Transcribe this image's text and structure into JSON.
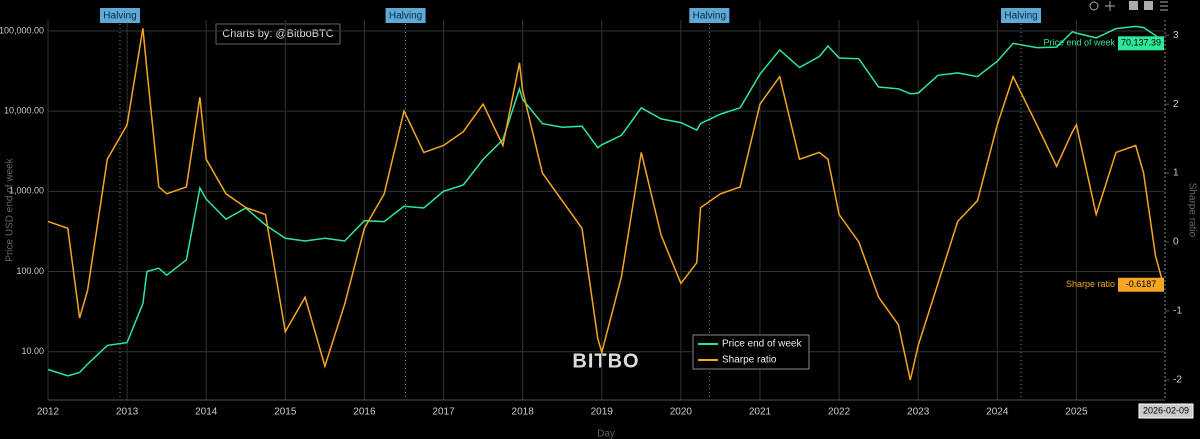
{
  "chart_data": {
    "type": "line",
    "credit": "Charts by: @BitboBTC",
    "watermark": "BITBO",
    "x_label": "Day",
    "y_label": "Price USD end of week",
    "y2_label": "Sharpe ratio",
    "hover_date": "2026-02-09",
    "y_log": true,
    "grid": true,
    "legend": "bottom",
    "halvings": {
      "label": "Halving",
      "x": [
        2012.91,
        2016.52,
        2020.36,
        2024.3
      ]
    },
    "xlim": [
      2012,
      2026.12
    ],
    "xticks": [
      2012,
      2013,
      2014,
      2015,
      2016,
      2017,
      2018,
      2019,
      2020,
      2021,
      2022,
      2023,
      2024,
      2025
    ],
    "ylim": [
      2.5,
      137000
    ],
    "yticks": [
      {
        "value": 10,
        "label": "10.00"
      },
      {
        "value": 100,
        "label": "100.00"
      },
      {
        "value": 1000,
        "label": "1,000.00"
      },
      {
        "value": 10000,
        "label": "10,000.00"
      },
      {
        "value": 100000,
        "label": "100,000.00"
      }
    ],
    "y2lim": [
      -2.29,
      3.22
    ],
    "y2ticks": [
      -2,
      -1,
      0,
      1,
      2,
      3
    ],
    "x": [
      2012.0,
      2012.25,
      2012.4,
      2012.5,
      2012.75,
      2013.0,
      2013.2,
      2013.25,
      2013.4,
      2013.5,
      2013.75,
      2013.92,
      2014.0,
      2014.25,
      2014.5,
      2014.75,
      2015.0,
      2015.25,
      2015.5,
      2015.75,
      2016.0,
      2016.25,
      2016.5,
      2016.75,
      2017.0,
      2017.25,
      2017.5,
      2017.75,
      2017.96,
      2018.0,
      2018.25,
      2018.5,
      2018.75,
      2018.95,
      2019.0,
      2019.25,
      2019.5,
      2019.75,
      2020.0,
      2020.2,
      2020.25,
      2020.5,
      2020.75,
      2021.0,
      2021.25,
      2021.5,
      2021.75,
      2021.86,
      2022.0,
      2022.25,
      2022.5,
      2022.75,
      2022.9,
      2023.0,
      2023.25,
      2023.5,
      2023.75,
      2024.0,
      2024.2,
      2024.5,
      2024.75,
      2024.95,
      2025.0,
      2025.25,
      2025.5,
      2025.75,
      2025.85,
      2026.0,
      2026.1
    ],
    "series": [
      {
        "name": "Price end of week",
        "color": "#2ee89a",
        "axis": "y",
        "values": [
          6,
          5,
          5.5,
          7,
          12,
          13,
          40,
          100,
          110,
          90,
          140,
          1100,
          800,
          450,
          620,
          380,
          260,
          240,
          260,
          240,
          430,
          420,
          650,
          620,
          1000,
          1200,
          2500,
          4400,
          19000,
          14000,
          7000,
          6300,
          6500,
          3500,
          3800,
          5000,
          11000,
          8000,
          7200,
          5800,
          7000,
          9200,
          11000,
          29000,
          58000,
          35000,
          48000,
          65000,
          46000,
          45000,
          20000,
          19000,
          16500,
          16800,
          28000,
          30000,
          27000,
          42000,
          70000,
          62000,
          63000,
          98000,
          94000,
          82000,
          107000,
          114000,
          110000,
          88000,
          70137.39
        ],
        "value_labels": [
          null,
          null,
          null,
          null,
          null,
          null,
          null,
          null,
          null,
          null,
          null,
          null,
          null,
          null,
          null,
          null,
          null,
          null,
          null,
          null,
          null,
          null,
          null,
          null,
          null,
          null,
          null,
          null,
          null,
          null,
          null,
          null,
          null,
          null,
          null,
          null,
          null,
          null,
          null,
          null,
          null,
          null,
          null,
          null,
          null,
          null,
          null,
          null,
          null,
          null,
          null,
          null,
          null,
          null,
          null,
          null,
          null,
          null,
          null,
          null,
          null,
          null,
          null,
          null,
          null,
          null,
          null,
          null,
          "70,137.39"
        ]
      },
      {
        "name": "Sharpe ratio",
        "color": "#f5a623",
        "axis": "y2",
        "values": [
          0.3,
          0.2,
          -1.1,
          -0.7,
          1.2,
          1.7,
          3.1,
          2.5,
          0.8,
          0.7,
          0.8,
          2.1,
          1.2,
          0.7,
          0.5,
          0.4,
          -1.3,
          -0.8,
          -1.8,
          -0.9,
          0.2,
          0.7,
          1.9,
          1.3,
          1.4,
          1.6,
          2.0,
          1.4,
          2.6,
          2.2,
          1.0,
          0.6,
          0.2,
          -1.4,
          -1.6,
          -0.5,
          1.3,
          0.1,
          -0.6,
          -0.3,
          0.5,
          0.7,
          0.8,
          2.0,
          2.4,
          1.2,
          1.3,
          1.2,
          0.4,
          0.0,
          -0.8,
          -1.2,
          -2.0,
          -1.5,
          -0.6,
          0.3,
          0.6,
          1.7,
          2.4,
          1.7,
          1.1,
          1.6,
          1.7,
          0.4,
          1.3,
          1.4,
          1.0,
          -0.2,
          -0.6187
        ]
      }
    ]
  }
}
